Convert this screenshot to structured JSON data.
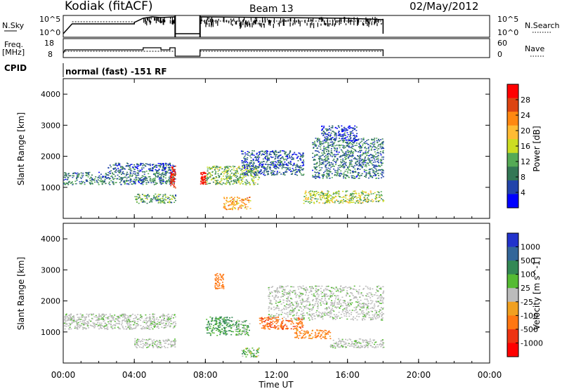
{
  "header": {
    "station": "Kodiak (fitACF)",
    "beam": "Beam 13",
    "date": "02/May/2012"
  },
  "status_panels": {
    "nsky_label": "N.Sky",
    "nsky_ticks": [
      "10^5",
      "10^0"
    ],
    "nsearch_label": "N.Search",
    "nsearch_ticks": [
      "10^5",
      "10^0"
    ],
    "freq_label_1": "Freq.",
    "freq_label_2": "[MHz]",
    "freq_ticks": [
      "18",
      "8"
    ],
    "nave_label": "Nave",
    "nave_ticks": [
      "60",
      "0"
    ],
    "cpid_label": "CPID",
    "cpid_text": "normal (fast) -151 RF"
  },
  "colors": {
    "power_scale": [
      "#0000ff",
      "#2244aa",
      "#337755",
      "#55aa55",
      "#ccdd22",
      "#ffbb33",
      "#ff8811",
      "#dd4411",
      "#ff0000"
    ],
    "velocity_scale": [
      "#2233cc",
      "#336699",
      "#338855",
      "#55bb33",
      "#bbbbbb",
      "#f0a020",
      "#ff7711",
      "#ee3311",
      "#ff0000"
    ],
    "ground_scatter": "#bbbbbb"
  },
  "chart_data": [
    {
      "type": "heatmap",
      "name": "power",
      "ylabel": "Slant Range [km]",
      "xlabel": "Time UT",
      "xlim": [
        "00:00",
        "24:00"
      ],
      "ylim": [
        0,
        4500
      ],
      "yticks": [
        "1000",
        "2000",
        "3000",
        "4000"
      ],
      "xticks": [
        "00:00",
        "04:00",
        "08:00",
        "12:00",
        "16:00",
        "20:00",
        "00:00"
      ],
      "colorbar_label": "Power [dB]",
      "colorbar_ticks": [
        "4",
        "8",
        "12",
        "16",
        "20",
        "24",
        "28"
      ],
      "colorbar_range": [
        0,
        30
      ],
      "regions": [
        {
          "t0": 0.0,
          "t1": 6.3,
          "r0": 1100,
          "r1": 1500,
          "level": 8
        },
        {
          "t0": 2.5,
          "t1": 6.3,
          "r0": 1500,
          "r1": 1800,
          "level": 6
        },
        {
          "t0": 4.0,
          "t1": 6.3,
          "r0": 500,
          "r1": 800,
          "level": 10
        },
        {
          "t0": 6.0,
          "t1": 6.3,
          "r0": 1000,
          "r1": 1700,
          "level": 28
        },
        {
          "t0": 7.7,
          "t1": 8.0,
          "r0": 1100,
          "r1": 1500,
          "level": 28
        },
        {
          "t0": 8.0,
          "t1": 11.0,
          "r0": 1100,
          "r1": 1700,
          "level": 12
        },
        {
          "t0": 9.0,
          "t1": 10.5,
          "r0": 300,
          "r1": 700,
          "level": 20
        },
        {
          "t0": 10.0,
          "t1": 13.5,
          "r0": 1400,
          "r1": 2200,
          "level": 6
        },
        {
          "t0": 13.5,
          "t1": 18.0,
          "r0": 500,
          "r1": 900,
          "level": 14
        },
        {
          "t0": 14.0,
          "t1": 18.0,
          "r0": 1300,
          "r1": 2600,
          "level": 8
        },
        {
          "t0": 14.5,
          "t1": 16.5,
          "r0": 2500,
          "r1": 3000,
          "level": 4
        }
      ]
    },
    {
      "type": "heatmap",
      "name": "velocity",
      "ylabel": "Slant Range [km]",
      "xlabel": "Time UT",
      "xlim": [
        "00:00",
        "24:00"
      ],
      "ylim": [
        0,
        4500
      ],
      "yticks": [
        "1000",
        "2000",
        "3000",
        "4000"
      ],
      "xticks": [
        "00:00",
        "04:00",
        "08:00",
        "12:00",
        "16:00",
        "20:00",
        "00:00"
      ],
      "colorbar_label": "Velocity [m s^-1]",
      "colorbar_ticks": [
        "1000",
        "500",
        "100",
        "25",
        "-25",
        "-100",
        "-500",
        "-1000"
      ],
      "regions": [
        {
          "t0": 0.0,
          "t1": 6.3,
          "r0": 1100,
          "r1": 1600,
          "vel": 0
        },
        {
          "t0": 4.0,
          "t1": 6.3,
          "r0": 500,
          "r1": 800,
          "vel": 0
        },
        {
          "t0": 8.0,
          "t1": 9.5,
          "r0": 900,
          "r1": 1500,
          "vel": 150
        },
        {
          "t0": 9.5,
          "t1": 10.5,
          "r0": 900,
          "r1": 1400,
          "vel": 80
        },
        {
          "t0": 8.5,
          "t1": 9.0,
          "r0": 2400,
          "r1": 2900,
          "vel": -400
        },
        {
          "t0": 10.0,
          "t1": 11.0,
          "r0": 200,
          "r1": 500,
          "vel": 60
        },
        {
          "t0": 11.0,
          "t1": 13.5,
          "r0": 1100,
          "r1": 1500,
          "vel": -450
        },
        {
          "t0": 13.0,
          "t1": 15.0,
          "r0": 800,
          "r1": 1100,
          "vel": -150
        },
        {
          "t0": 11.5,
          "t1": 18.0,
          "r0": 1400,
          "r1": 2500,
          "vel": 0
        },
        {
          "t0": 15.0,
          "t1": 18.0,
          "r0": 500,
          "r1": 800,
          "vel": 0
        }
      ]
    }
  ]
}
